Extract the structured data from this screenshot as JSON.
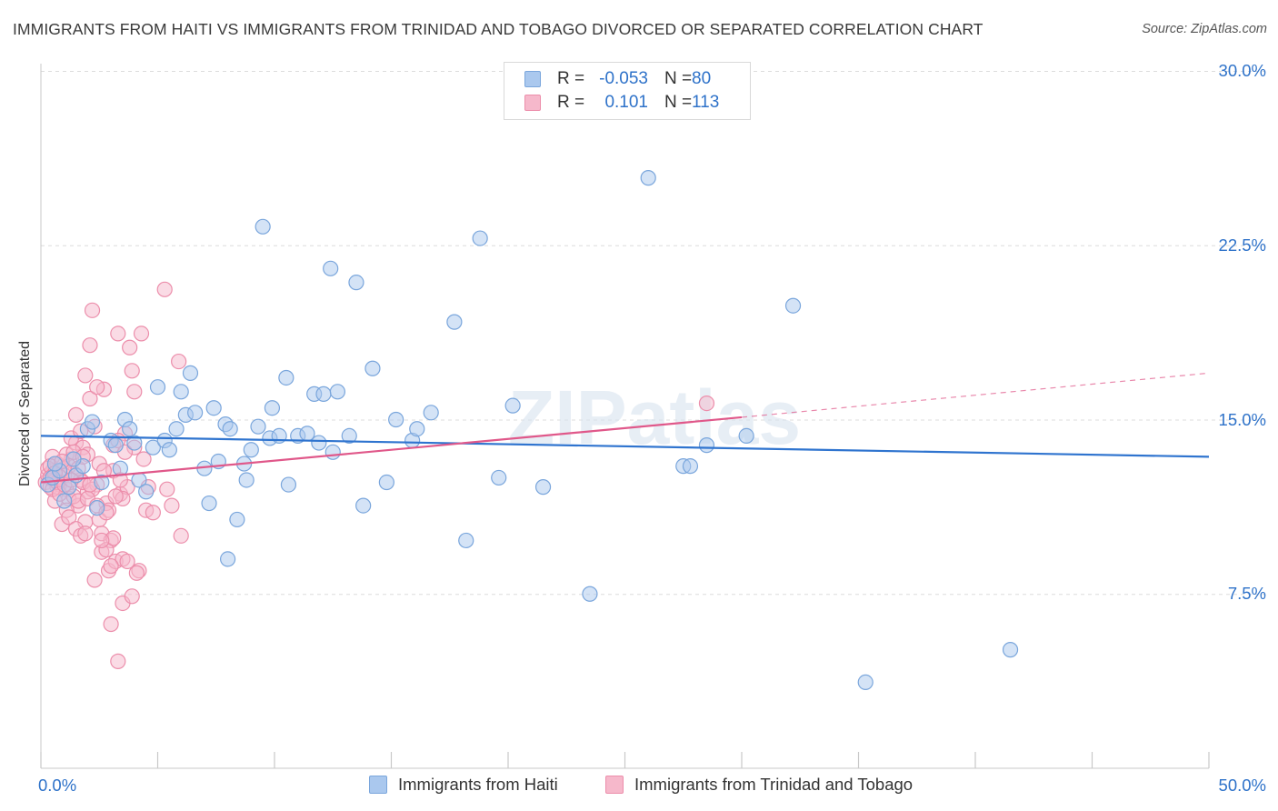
{
  "title": "IMMIGRANTS FROM HAITI VS IMMIGRANTS FROM TRINIDAD AND TOBAGO DIVORCED OR SEPARATED CORRELATION CHART",
  "source": "Source: ZipAtlas.com",
  "watermark": "ZIPatlas",
  "legend": {
    "rows": [
      {
        "r_label": "R =",
        "r_value": "-0.053",
        "n_label": "N =",
        "n_value": "80"
      },
      {
        "r_label": "R =",
        "r_value": "0.101",
        "n_label": "N =",
        "n_value": "113"
      }
    ]
  },
  "bottom_legend": {
    "haiti": "Immigrants from Haiti",
    "trinidad": "Immigrants from Trinidad and Tobago"
  },
  "colors": {
    "haiti_fill": "#aac8ee",
    "haiti_stroke": "#7aa6dc",
    "haiti_line": "#2f74cf",
    "trinidad_fill": "#f6b8cb",
    "trinidad_stroke": "#ec8eab",
    "trinidad_line": "#e0588a",
    "axis_text": "#2e72c9",
    "grid": "#dcdcdc"
  },
  "chart_data": {
    "type": "scatter",
    "title": "IMMIGRANTS FROM HAITI VS IMMIGRANTS FROM TRINIDAD AND TOBAGO DIVORCED OR SEPARATED CORRELATION CHART",
    "xlabel": "",
    "ylabel": "Divorced or Separated",
    "xlim": [
      0,
      50
    ],
    "ylim": [
      0,
      30
    ],
    "x_tick_labels": [
      "0.0%",
      "50.0%"
    ],
    "y_ticks": [
      7.5,
      15.0,
      22.5,
      30.0
    ],
    "y_tick_labels": [
      "7.5%",
      "15.0%",
      "22.5%",
      "30.0%"
    ],
    "grid": true,
    "legend_position": "top-center",
    "series": [
      {
        "name": "Immigrants from Haiti",
        "trend": {
          "x": [
            0,
            50
          ],
          "y": [
            14.3,
            13.4
          ],
          "style": "solid"
        },
        "points": [
          [
            0.3,
            12.2
          ],
          [
            0.5,
            12.5
          ],
          [
            0.8,
            12.8
          ],
          [
            1.0,
            11.5
          ],
          [
            1.2,
            12.1
          ],
          [
            1.5,
            12.6
          ],
          [
            1.8,
            13.0
          ],
          [
            2.0,
            14.6
          ],
          [
            2.2,
            14.9
          ],
          [
            2.4,
            11.2
          ],
          [
            2.6,
            12.3
          ],
          [
            3.0,
            14.1
          ],
          [
            3.2,
            13.9
          ],
          [
            3.4,
            12.9
          ],
          [
            3.6,
            15.0
          ],
          [
            3.8,
            14.6
          ],
          [
            4.0,
            14.0
          ],
          [
            4.2,
            12.4
          ],
          [
            4.5,
            11.9
          ],
          [
            4.8,
            13.8
          ],
          [
            5.0,
            16.4
          ],
          [
            5.3,
            14.1
          ],
          [
            5.5,
            13.7
          ],
          [
            5.8,
            14.6
          ],
          [
            6.0,
            16.2
          ],
          [
            6.2,
            15.2
          ],
          [
            6.4,
            17.0
          ],
          [
            6.6,
            15.3
          ],
          [
            7.0,
            12.9
          ],
          [
            7.2,
            11.4
          ],
          [
            7.4,
            15.5
          ],
          [
            7.6,
            13.2
          ],
          [
            7.9,
            14.8
          ],
          [
            8.1,
            14.6
          ],
          [
            8.4,
            10.7
          ],
          [
            8.7,
            13.1
          ],
          [
            8.8,
            12.4
          ],
          [
            9.0,
            13.7
          ],
          [
            9.3,
            14.7
          ],
          [
            9.5,
            23.3
          ],
          [
            9.8,
            14.2
          ],
          [
            9.9,
            15.5
          ],
          [
            10.2,
            14.3
          ],
          [
            10.5,
            16.8
          ],
          [
            10.6,
            12.2
          ],
          [
            11.0,
            14.3
          ],
          [
            11.4,
            14.4
          ],
          [
            11.7,
            16.1
          ],
          [
            11.9,
            14.0
          ],
          [
            12.1,
            16.1
          ],
          [
            12.4,
            21.5
          ],
          [
            12.5,
            13.6
          ],
          [
            12.7,
            16.2
          ],
          [
            13.2,
            14.3
          ],
          [
            13.5,
            20.9
          ],
          [
            13.8,
            11.3
          ],
          [
            14.2,
            17.2
          ],
          [
            14.8,
            12.3
          ],
          [
            15.2,
            15.0
          ],
          [
            15.9,
            14.1
          ],
          [
            16.1,
            14.6
          ],
          [
            16.7,
            15.3
          ],
          [
            17.7,
            19.2
          ],
          [
            18.2,
            9.8
          ],
          [
            18.8,
            22.8
          ],
          [
            19.6,
            12.5
          ],
          [
            20.2,
            15.6
          ],
          [
            21.5,
            12.1
          ],
          [
            23.5,
            7.5
          ],
          [
            26.0,
            25.4
          ],
          [
            27.5,
            13.0
          ],
          [
            27.8,
            13.0
          ],
          [
            28.5,
            13.9
          ],
          [
            30.2,
            14.3
          ],
          [
            32.2,
            19.9
          ],
          [
            35.3,
            3.7
          ],
          [
            41.5,
            5.1
          ],
          [
            8.0,
            9.0
          ],
          [
            0.6,
            13.1
          ],
          [
            1.4,
            13.3
          ]
        ]
      },
      {
        "name": "Immigrants from Trinidad and Tobago",
        "trend": {
          "x": [
            0,
            30
          ],
          "y": [
            12.3,
            15.1
          ],
          "style": "solid",
          "dashed_extension": {
            "x": [
              30,
              50
            ],
            "y": [
              15.1,
              17.0
            ]
          }
        },
        "points": [
          [
            0.2,
            12.3
          ],
          [
            0.3,
            12.6
          ],
          [
            0.4,
            12.1
          ],
          [
            0.5,
            12.8
          ],
          [
            0.6,
            12.4
          ],
          [
            0.7,
            13.1
          ],
          [
            0.8,
            12.2
          ],
          [
            0.9,
            12.5
          ],
          [
            1.0,
            12.9
          ],
          [
            1.1,
            12.0
          ],
          [
            1.2,
            11.6
          ],
          [
            1.3,
            13.3
          ],
          [
            1.4,
            12.7
          ],
          [
            1.5,
            14.0
          ],
          [
            1.6,
            11.3
          ],
          [
            1.7,
            12.4
          ],
          [
            1.8,
            13.8
          ],
          [
            1.9,
            10.6
          ],
          [
            2.0,
            11.9
          ],
          [
            2.1,
            15.9
          ],
          [
            2.2,
            19.7
          ],
          [
            2.3,
            14.7
          ],
          [
            2.4,
            12.2
          ],
          [
            2.5,
            13.1
          ],
          [
            2.6,
            10.1
          ],
          [
            2.7,
            16.3
          ],
          [
            2.8,
            11.4
          ],
          [
            2.9,
            8.5
          ],
          [
            3.0,
            9.8
          ],
          [
            3.1,
            12.8
          ],
          [
            3.2,
            8.9
          ],
          [
            3.3,
            18.7
          ],
          [
            3.4,
            11.8
          ],
          [
            3.5,
            7.1
          ],
          [
            3.6,
            14.4
          ],
          [
            3.7,
            12.1
          ],
          [
            3.8,
            18.1
          ],
          [
            3.9,
            17.1
          ],
          [
            4.0,
            13.8
          ],
          [
            4.2,
            8.5
          ],
          [
            4.3,
            18.7
          ],
          [
            4.5,
            11.1
          ],
          [
            4.6,
            12.1
          ],
          [
            4.8,
            11.0
          ],
          [
            5.3,
            20.6
          ],
          [
            5.4,
            12.0
          ],
          [
            5.6,
            11.3
          ],
          [
            5.9,
            17.5
          ],
          [
            6.0,
            10.0
          ],
          [
            1.1,
            13.5
          ],
          [
            1.3,
            14.2
          ],
          [
            1.5,
            15.2
          ],
          [
            1.7,
            14.5
          ],
          [
            1.9,
            16.9
          ],
          [
            2.1,
            18.2
          ],
          [
            2.4,
            16.4
          ],
          [
            2.6,
            9.3
          ],
          [
            2.8,
            9.4
          ],
          [
            3.0,
            6.2
          ],
          [
            3.1,
            9.9
          ],
          [
            3.3,
            4.6
          ],
          [
            3.5,
            9.0
          ],
          [
            3.7,
            8.9
          ],
          [
            3.9,
            7.4
          ],
          [
            4.1,
            8.4
          ],
          [
            0.5,
            13.4
          ],
          [
            0.6,
            11.5
          ],
          [
            0.7,
            12.1
          ],
          [
            0.9,
            10.5
          ],
          [
            1.0,
            12.6
          ],
          [
            1.2,
            13.0
          ],
          [
            1.4,
            11.7
          ],
          [
            1.6,
            12.9
          ],
          [
            1.8,
            12.3
          ],
          [
            2.0,
            13.5
          ],
          [
            2.2,
            12.0
          ],
          [
            2.5,
            10.7
          ],
          [
            2.7,
            12.8
          ],
          [
            2.9,
            11.1
          ],
          [
            3.1,
            13.9
          ],
          [
            3.3,
            14.1
          ],
          [
            3.5,
            11.6
          ],
          [
            0.3,
            12.9
          ],
          [
            0.4,
            13.0
          ],
          [
            0.5,
            12.0
          ],
          [
            0.6,
            12.7
          ],
          [
            0.7,
            12.3
          ],
          [
            0.8,
            11.8
          ],
          [
            0.9,
            13.2
          ],
          [
            1.0,
            12.2
          ],
          [
            1.1,
            11.1
          ],
          [
            1.2,
            10.8
          ],
          [
            1.3,
            12.4
          ],
          [
            1.4,
            13.6
          ],
          [
            1.5,
            10.3
          ],
          [
            1.6,
            11.5
          ],
          [
            1.7,
            10.0
          ],
          [
            1.8,
            13.4
          ],
          [
            1.9,
            10.1
          ],
          [
            2.0,
            11.6
          ],
          [
            2.1,
            12.2
          ],
          [
            2.3,
            8.1
          ],
          [
            2.4,
            11.3
          ],
          [
            2.6,
            9.8
          ],
          [
            2.8,
            11.0
          ],
          [
            3.0,
            8.7
          ],
          [
            3.2,
            11.7
          ],
          [
            3.4,
            12.4
          ],
          [
            3.6,
            13.6
          ],
          [
            4.0,
            16.2
          ],
          [
            4.4,
            13.3
          ],
          [
            28.5,
            15.7
          ],
          [
            0.4,
            12.5
          ]
        ]
      }
    ]
  }
}
